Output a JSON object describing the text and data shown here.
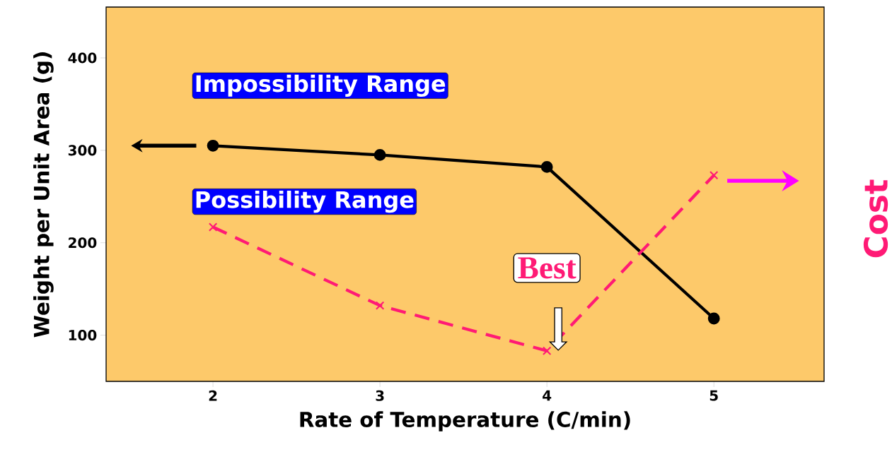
{
  "chart_data": {
    "type": "line",
    "xlabel": "Rate of Temperature (C/min)",
    "ylabel": "Weight per Unit Area (g)",
    "y2label": "Cost",
    "x": [
      2,
      3,
      4,
      5
    ],
    "series": [
      {
        "color": "#000000",
        "values": [
          305,
          295,
          282,
          118
        ],
        "marker": "circle",
        "line_style": "solid"
      },
      {
        "color": "#ff1a75",
        "values": [
          217,
          132,
          83,
          273
        ],
        "marker": "cross",
        "line_style": "dashed"
      }
    ],
    "xlim": [
      1.36,
      5.66
    ],
    "ylim": [
      50,
      455
    ],
    "xticks": [
      2,
      3,
      4,
      5
    ],
    "yticks": [
      100,
      200,
      300,
      400
    ],
    "grid": false,
    "annotations": [
      "Impossibility Range",
      "Possibility Range",
      {
        "text": "Best",
        "x": 4,
        "y": 83
      }
    ]
  }
}
